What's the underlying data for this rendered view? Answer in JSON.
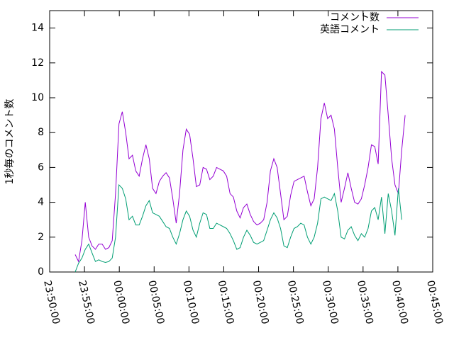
{
  "chart_data": {
    "type": "line",
    "ylabel": "1秒毎のコメント数",
    "x": [
      220,
      249,
      278,
      307,
      336,
      365,
      394,
      423,
      452,
      481,
      510,
      539,
      568,
      597,
      626,
      655,
      684,
      713,
      742,
      771,
      800,
      829,
      858,
      887,
      916,
      945,
      974,
      1003,
      1032,
      1061,
      1090,
      1119,
      1148,
      1177,
      1206,
      1235,
      1264,
      1293,
      1322,
      1351,
      1380,
      1409,
      1438,
      1467,
      1496,
      1525,
      1554,
      1583,
      1612,
      1641,
      1670,
      1699,
      1728,
      1757,
      1786,
      1815,
      1844,
      1873,
      1902,
      1931,
      1960,
      1989,
      2018,
      2047,
      2076,
      2105,
      2134,
      2163,
      2192,
      2221,
      2250,
      2279,
      2308,
      2337,
      2366,
      2395,
      2424,
      2453,
      2482,
      2511,
      2540,
      2569,
      2598,
      2627,
      2656,
      2685,
      2714,
      2743,
      2772,
      2801,
      2830,
      2859,
      2888,
      2917,
      2946,
      2975,
      3004,
      3033,
      3062
    ],
    "series": [
      {
        "name": "コメント数",
        "color": "#9400d3",
        "values": [
          1.0,
          0.6,
          1.8,
          4.0,
          2.0,
          1.5,
          1.3,
          1.6,
          1.6,
          1.3,
          1.4,
          1.8,
          4.5,
          8.5,
          9.2,
          8.0,
          6.5,
          6.7,
          5.8,
          5.5,
          6.5,
          7.3,
          6.5,
          4.8,
          4.5,
          5.2,
          5.5,
          5.7,
          5.4,
          4.2,
          2.8,
          4.5,
          7.0,
          8.2,
          7.9,
          6.5,
          4.9,
          5.0,
          6.0,
          5.9,
          5.3,
          5.5,
          6.0,
          5.9,
          5.8,
          5.5,
          4.5,
          4.3,
          3.5,
          3.1,
          3.7,
          3.9,
          3.3,
          2.9,
          2.7,
          2.8,
          3.0,
          4.0,
          5.8,
          6.5,
          6.0,
          4.5,
          3.0,
          3.2,
          4.4,
          5.2,
          5.3,
          5.4,
          5.5,
          4.6,
          3.8,
          4.2,
          6.0,
          8.8,
          9.7,
          8.8,
          9.0,
          8.2,
          6.0,
          4.0,
          4.8,
          5.7,
          4.8,
          4.0,
          3.9,
          4.2,
          5.0,
          6.0,
          7.3,
          7.2,
          6.2,
          11.5,
          11.3,
          9.0,
          6.5,
          5.0,
          4.5,
          7.0,
          9.0
        ]
      },
      {
        "name": "英語コメント",
        "color": "#009e73",
        "values": [
          0,
          0.5,
          0.8,
          1.3,
          1.6,
          1.1,
          0.6,
          0.7,
          0.6,
          0.55,
          0.6,
          0.8,
          2.0,
          5.0,
          4.8,
          4.2,
          3.0,
          3.2,
          2.7,
          2.7,
          3.2,
          3.8,
          4.1,
          3.4,
          3.3,
          3.2,
          2.9,
          2.6,
          2.5,
          2.0,
          1.6,
          2.2,
          3.0,
          3.5,
          3.2,
          2.4,
          2.0,
          2.8,
          3.4,
          3.3,
          2.5,
          2.5,
          2.8,
          2.7,
          2.6,
          2.5,
          2.2,
          1.8,
          1.3,
          1.4,
          2.0,
          2.4,
          2.1,
          1.7,
          1.6,
          1.7,
          1.8,
          2.4,
          3.0,
          3.4,
          3.1,
          2.5,
          1.5,
          1.4,
          2.0,
          2.5,
          2.6,
          2.8,
          2.7,
          2.0,
          1.6,
          2.0,
          2.8,
          4.2,
          4.3,
          4.2,
          4.1,
          4.5,
          3.5,
          2.0,
          1.9,
          2.4,
          2.6,
          2.1,
          1.8,
          2.2,
          2.0,
          2.5,
          3.5,
          3.7,
          3.0,
          4.3,
          2.2,
          4.5,
          3.5,
          2.1,
          4.8,
          3.0,
          null
        ]
      }
    ],
    "xlim": [
      0,
      3300
    ],
    "xticks": [
      {
        "value": 0,
        "label": "23:50:00"
      },
      {
        "value": 300,
        "label": "23:55:00"
      },
      {
        "value": 600,
        "label": "00:00:00"
      },
      {
        "value": 900,
        "label": "00:05:00"
      },
      {
        "value": 1200,
        "label": "00:10:00"
      },
      {
        "value": 1500,
        "label": "00:15:00"
      },
      {
        "value": 1800,
        "label": "00:20:00"
      },
      {
        "value": 2100,
        "label": "00:25:00"
      },
      {
        "value": 2400,
        "label": "00:30:00"
      },
      {
        "value": 2700,
        "label": "00:35:00"
      },
      {
        "value": 3000,
        "label": "00:40:00"
      },
      {
        "value": 3300,
        "label": "00:45:00"
      }
    ],
    "ylim": [
      0,
      15
    ],
    "yticks": [
      0,
      2,
      4,
      6,
      8,
      10,
      12,
      14
    ],
    "legend": "top-right"
  }
}
